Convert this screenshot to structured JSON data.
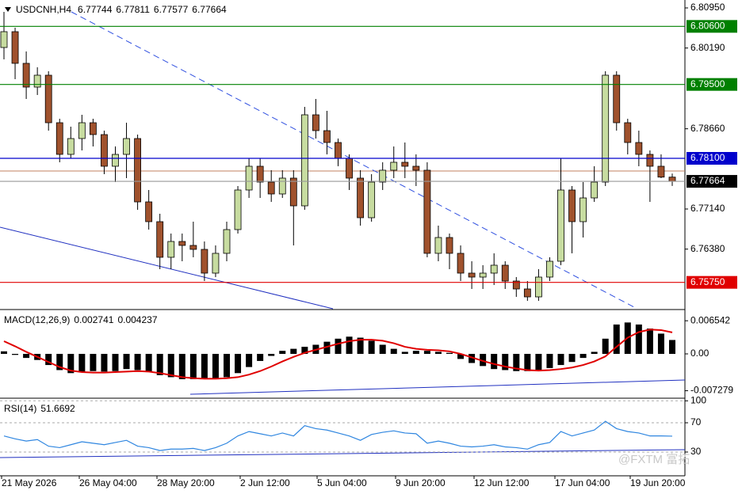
{
  "chart_data": {
    "type": "candlestick",
    "symbol": "USDCNH,H4",
    "ylim": [
      6.7525,
      6.811
    ],
    "yticks": [
      {
        "value": 6.8095,
        "label": "6.80950"
      },
      {
        "value": 6.8019,
        "label": "6.80190"
      },
      {
        "value": 6.7866,
        "label": "6.78660"
      },
      {
        "value": 6.7714,
        "label": "6.77140"
      },
      {
        "value": 6.7638,
        "label": "6.76380"
      }
    ],
    "levels": [
      {
        "value": 6.806,
        "label": "6.80600",
        "color": "#008000"
      },
      {
        "value": 6.795,
        "label": "6.79500",
        "color": "#008000"
      },
      {
        "value": 6.781,
        "label": "6.78100",
        "color": "#0000cc"
      },
      {
        "value": 6.77664,
        "label": "6.77664",
        "color": "#000000"
      },
      {
        "value": 6.7575,
        "label": "6.75750",
        "color": "#e00000"
      }
    ],
    "bull_color": "#c7dca0",
    "bear_color": "#a0522d",
    "candles": [
      [
        6.802,
        6.80875,
        6.79975,
        6.805
      ],
      [
        6.805,
        6.80575,
        6.796,
        6.799
      ],
      [
        6.799,
        6.80125,
        6.79225,
        6.7945
      ],
      [
        6.7945,
        6.79825,
        6.793,
        6.79675
      ],
      [
        6.79675,
        6.7975,
        6.78625,
        6.78775
      ],
      [
        6.78775,
        6.7885,
        6.78025,
        6.78175
      ],
      [
        6.78175,
        6.787,
        6.781,
        6.78475
      ],
      [
        6.78475,
        6.78925,
        6.7825,
        6.78775
      ],
      [
        6.78775,
        6.7885,
        6.78325,
        6.7855
      ],
      [
        6.7855,
        6.78625,
        6.778,
        6.7795
      ],
      [
        6.7795,
        6.78325,
        6.7765,
        6.78175
      ],
      [
        6.78175,
        6.78775,
        6.77725,
        6.78475
      ],
      [
        6.78475,
        6.7855,
        6.77125,
        6.77275
      ],
      [
        6.77275,
        6.775,
        6.7675,
        6.769
      ],
      [
        6.769,
        6.7705,
        6.76,
        6.76225
      ],
      [
        6.76225,
        6.76675,
        6.76,
        6.76525
      ],
      [
        6.76525,
        6.76675,
        6.7615,
        6.7645
      ],
      [
        6.7645,
        6.769,
        6.76225,
        6.76375
      ],
      [
        6.76375,
        6.76525,
        6.75775,
        6.75925
      ],
      [
        6.75925,
        6.7645,
        6.7585,
        6.763
      ],
      [
        6.763,
        6.769,
        6.7615,
        6.7675
      ],
      [
        6.7675,
        6.77575,
        6.76675,
        6.775
      ],
      [
        6.775,
        6.781,
        6.7735,
        6.7795
      ],
      [
        6.7795,
        6.781,
        6.7735,
        6.7765
      ],
      [
        6.7765,
        6.77875,
        6.77275,
        6.77425
      ],
      [
        6.77425,
        6.77875,
        6.7735,
        6.77725
      ],
      [
        6.77725,
        6.77875,
        6.7645,
        6.772
      ],
      [
        6.772,
        6.79075,
        6.77125,
        6.78925
      ],
      [
        6.78925,
        6.79225,
        6.78475,
        6.78625
      ],
      [
        6.78625,
        6.79,
        6.78175,
        6.784
      ],
      [
        6.784,
        6.78475,
        6.7795,
        6.781
      ],
      [
        6.781,
        6.78175,
        6.775,
        6.77725
      ],
      [
        6.77725,
        6.77875,
        6.76825,
        6.76975
      ],
      [
        6.76975,
        6.778,
        6.769,
        6.7765
      ],
      [
        6.7765,
        6.78025,
        6.775,
        6.77875
      ],
      [
        6.77875,
        6.78325,
        6.77725,
        6.78025
      ],
      [
        6.78025,
        6.784,
        6.77725,
        6.7795
      ],
      [
        6.7795,
        6.78175,
        6.77575,
        6.77875
      ],
      [
        6.77875,
        6.78025,
        6.76225,
        6.763
      ],
      [
        6.763,
        6.76825,
        6.7615,
        6.766
      ],
      [
        6.766,
        6.76675,
        6.76,
        6.763
      ],
      [
        6.763,
        6.7645,
        6.75775,
        6.75925
      ],
      [
        6.75925,
        6.7615,
        6.75625,
        6.7585
      ],
      [
        6.7585,
        6.76075,
        6.75625,
        6.75925
      ],
      [
        6.75925,
        6.763,
        6.757,
        6.76075
      ],
      [
        6.76075,
        6.7615,
        6.75625,
        6.75775
      ],
      [
        6.75775,
        6.7585,
        6.75475,
        6.75625
      ],
      [
        6.75625,
        6.75775,
        6.754,
        6.75475
      ],
      [
        6.75475,
        6.76,
        6.754,
        6.7585
      ],
      [
        6.7585,
        6.76225,
        6.75775,
        6.7615
      ],
      [
        6.7615,
        6.781,
        6.76075,
        6.775
      ],
      [
        6.775,
        6.77575,
        6.763,
        6.769
      ],
      [
        6.769,
        6.7765,
        6.766,
        6.7735
      ],
      [
        6.7735,
        6.7795,
        6.77275,
        6.7765
      ],
      [
        6.7765,
        6.7975,
        6.77575,
        6.79675
      ],
      [
        6.79675,
        6.7975,
        6.78625,
        6.78775
      ],
      [
        6.78775,
        6.7885,
        6.78175,
        6.784
      ],
      [
        6.784,
        6.78625,
        6.7795,
        6.78175
      ],
      [
        6.78175,
        6.7825,
        6.77275,
        6.7795
      ],
      [
        6.7795,
        6.78175,
        6.77725,
        6.77744
      ],
      [
        6.77744,
        6.77811,
        6.77577,
        6.77664
      ]
    ],
    "x_labels": [
      "21 May 2026",
      "26 May 04:00",
      "28 May 20:00",
      "2 Jun 12:00",
      "5 Jun 04:00",
      "9 Jun 20:00",
      "12 Jun 12:00",
      "17 Jun 04:00",
      "19 Jun 20:00"
    ],
    "macd": {
      "label": "MACD(12,26,9)",
      "ylim": [
        -0.0086,
        0.0086
      ],
      "yticks": [
        0.006542,
        {
          "value": 0,
          "label": "0.00"
        },
        -0.007279
      ],
      "histogram_color": "#000000",
      "signal_color": "#e00000",
      "histogram": [
        0.0005,
        -0.0002,
        -0.0008,
        -0.0012,
        -0.0022,
        -0.0032,
        -0.0038,
        -0.0036,
        -0.0034,
        -0.0035,
        -0.0034,
        -0.003,
        -0.0032,
        -0.0036,
        -0.0042,
        -0.0046,
        -0.005,
        -0.005,
        -0.005,
        -0.0048,
        -0.0046,
        -0.0038,
        -0.0026,
        -0.0014,
        -0.0004,
        0.0006,
        0.001,
        0.0014,
        0.0018,
        0.0024,
        0.003,
        0.0034,
        0.0032,
        0.0026,
        0.0018,
        0.001,
        0.0004,
        0.0006,
        0.0006,
        0.0004,
        0.0002,
        -0.001,
        -0.0018,
        -0.0024,
        -0.003,
        -0.0032,
        -0.0034,
        -0.0034,
        -0.0032,
        -0.0028,
        -0.0022,
        -0.0016,
        -0.0008,
        0.0004,
        0.003,
        0.0058,
        0.0062,
        0.0058,
        0.005,
        0.004,
        0.002741
      ],
      "signal": [
        0.0025,
        0.0015,
        0.0004,
        -0.0006,
        -0.0016,
        -0.0026,
        -0.0033,
        -0.0036,
        -0.0037,
        -0.0037,
        -0.0036,
        -0.0035,
        -0.0034,
        -0.0035,
        -0.0038,
        -0.0042,
        -0.0046,
        -0.0048,
        -0.0049,
        -0.0049,
        -0.0048,
        -0.0046,
        -0.0041,
        -0.0034,
        -0.0025,
        -0.0015,
        -0.0006,
        0.0002,
        0.0008,
        0.0014,
        0.002,
        0.0025,
        0.0028,
        0.0028,
        0.0026,
        0.0021,
        0.0014,
        0.001,
        0.0008,
        0.0007,
        0.0005,
        0.0,
        -0.0007,
        -0.0014,
        -0.002,
        -0.0025,
        -0.0029,
        -0.0032,
        -0.0033,
        -0.0032,
        -0.003,
        -0.0027,
        -0.0022,
        -0.0015,
        -0.0005,
        0.0014,
        0.0032,
        0.0043,
        0.0048,
        0.0047,
        0.004237
      ]
    },
    "rsi": {
      "label": "RSI(14)",
      "ylim": [
        -1.4,
        101.4
      ],
      "yticks": [
        100,
        70,
        30
      ],
      "color": "#2f86e0",
      "values": [
        52,
        48,
        45,
        47,
        38,
        36,
        40,
        44,
        42,
        40,
        43,
        46,
        38,
        36,
        32,
        34,
        34,
        35,
        32,
        36,
        42,
        52,
        58,
        55,
        52,
        56,
        52,
        66,
        62,
        60,
        56,
        52,
        46,
        54,
        57,
        59,
        56,
        55,
        42,
        45,
        42,
        38,
        37,
        38,
        40,
        37,
        36,
        34,
        40,
        43,
        58,
        52,
        56,
        60,
        72,
        62,
        58,
        56,
        52,
        52,
        51.6692
      ]
    },
    "watermark": "@FXTM 富拓"
  }
}
